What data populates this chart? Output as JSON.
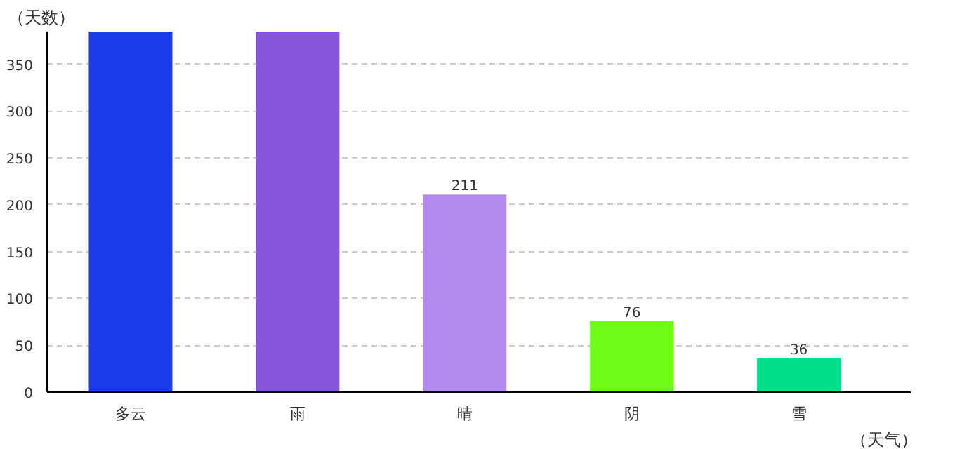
{
  "chart_data": {
    "type": "bar",
    "xlabel": "（天气）",
    "ylabel": "（天数）",
    "categories": [
      "多云",
      "雨",
      "晴",
      "阴",
      "雪"
    ],
    "values": [
      385,
      385,
      211,
      76,
      36
    ],
    "colors": [
      "#1a3be8",
      "#8755dd",
      "#b38aee",
      "#6ffc16",
      "#00e08a"
    ],
    "value_labels": [
      null,
      null,
      "211",
      "76",
      "36"
    ],
    "ylim": [
      0,
      385
    ],
    "yticks": [
      0,
      50,
      100,
      150,
      200,
      250,
      300,
      350
    ],
    "grid": "y",
    "legend": false
  }
}
